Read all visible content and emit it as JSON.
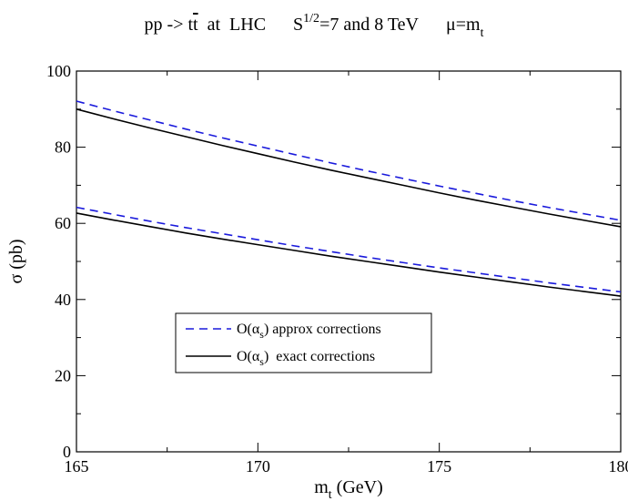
{
  "chart_data": {
    "type": "line",
    "title": {
      "prefix": "pp -> t",
      "tbar": "t",
      "mid": "  at  LHC",
      "sqrt_s_base": "S",
      "sqrt_s_exp": "1/2",
      "energies": "=7 and 8 TeV",
      "scale_base": "μ=m",
      "scale_sub": "t"
    },
    "xlabel": {
      "base": "m",
      "sub": "t",
      "rest": " (GeV)"
    },
    "ylabel": "σ (pb)",
    "xlim": [
      165,
      180
    ],
    "ylim": [
      0,
      100
    ],
    "xticks": [
      165,
      170,
      175,
      180
    ],
    "yticks": [
      0,
      20,
      40,
      60,
      80,
      100
    ],
    "grid": false,
    "legend_position": "center-left, lower half",
    "x": [
      165,
      166,
      167,
      168,
      169,
      170,
      171,
      172,
      173,
      174,
      175,
      176,
      177,
      178,
      179,
      180
    ],
    "series": [
      {
        "name": "approx-8TeV",
        "style": "dashed",
        "color": "#1a1adc",
        "values": [
          92.1,
          89.6,
          87.2,
          84.8,
          82.5,
          80.3,
          78.1,
          75.9,
          73.8,
          71.8,
          69.8,
          67.9,
          66.0,
          64.2,
          62.5,
          60.8
        ]
      },
      {
        "name": "exact-8TeV",
        "style": "solid",
        "color": "#000000",
        "values": [
          90.0,
          87.5,
          85.1,
          82.8,
          80.5,
          78.3,
          76.1,
          74.0,
          72.0,
          70.0,
          68.0,
          66.1,
          64.3,
          62.5,
          60.8,
          59.1
        ]
      },
      {
        "name": "approx-7TeV",
        "style": "dashed",
        "color": "#1a1adc",
        "values": [
          64.2,
          62.4,
          60.6,
          58.9,
          57.3,
          55.7,
          54.1,
          52.6,
          51.1,
          49.7,
          48.3,
          47.0,
          45.7,
          44.4,
          43.2,
          42.0
        ]
      },
      {
        "name": "exact-7TeV",
        "style": "solid",
        "color": "#000000",
        "values": [
          62.7,
          60.9,
          59.2,
          57.5,
          55.9,
          54.4,
          52.9,
          51.4,
          50.0,
          48.6,
          47.2,
          45.9,
          44.6,
          43.3,
          42.1,
          40.9
        ]
      }
    ],
    "legend": [
      {
        "style": "dashed",
        "color": "#1a1adc",
        "pre": "O(α",
        "sub": "s",
        "post": ") approx corrections"
      },
      {
        "style": "solid",
        "color": "#000000",
        "pre": "O(α",
        "sub": "s",
        "post": ")  exact corrections"
      }
    ]
  }
}
